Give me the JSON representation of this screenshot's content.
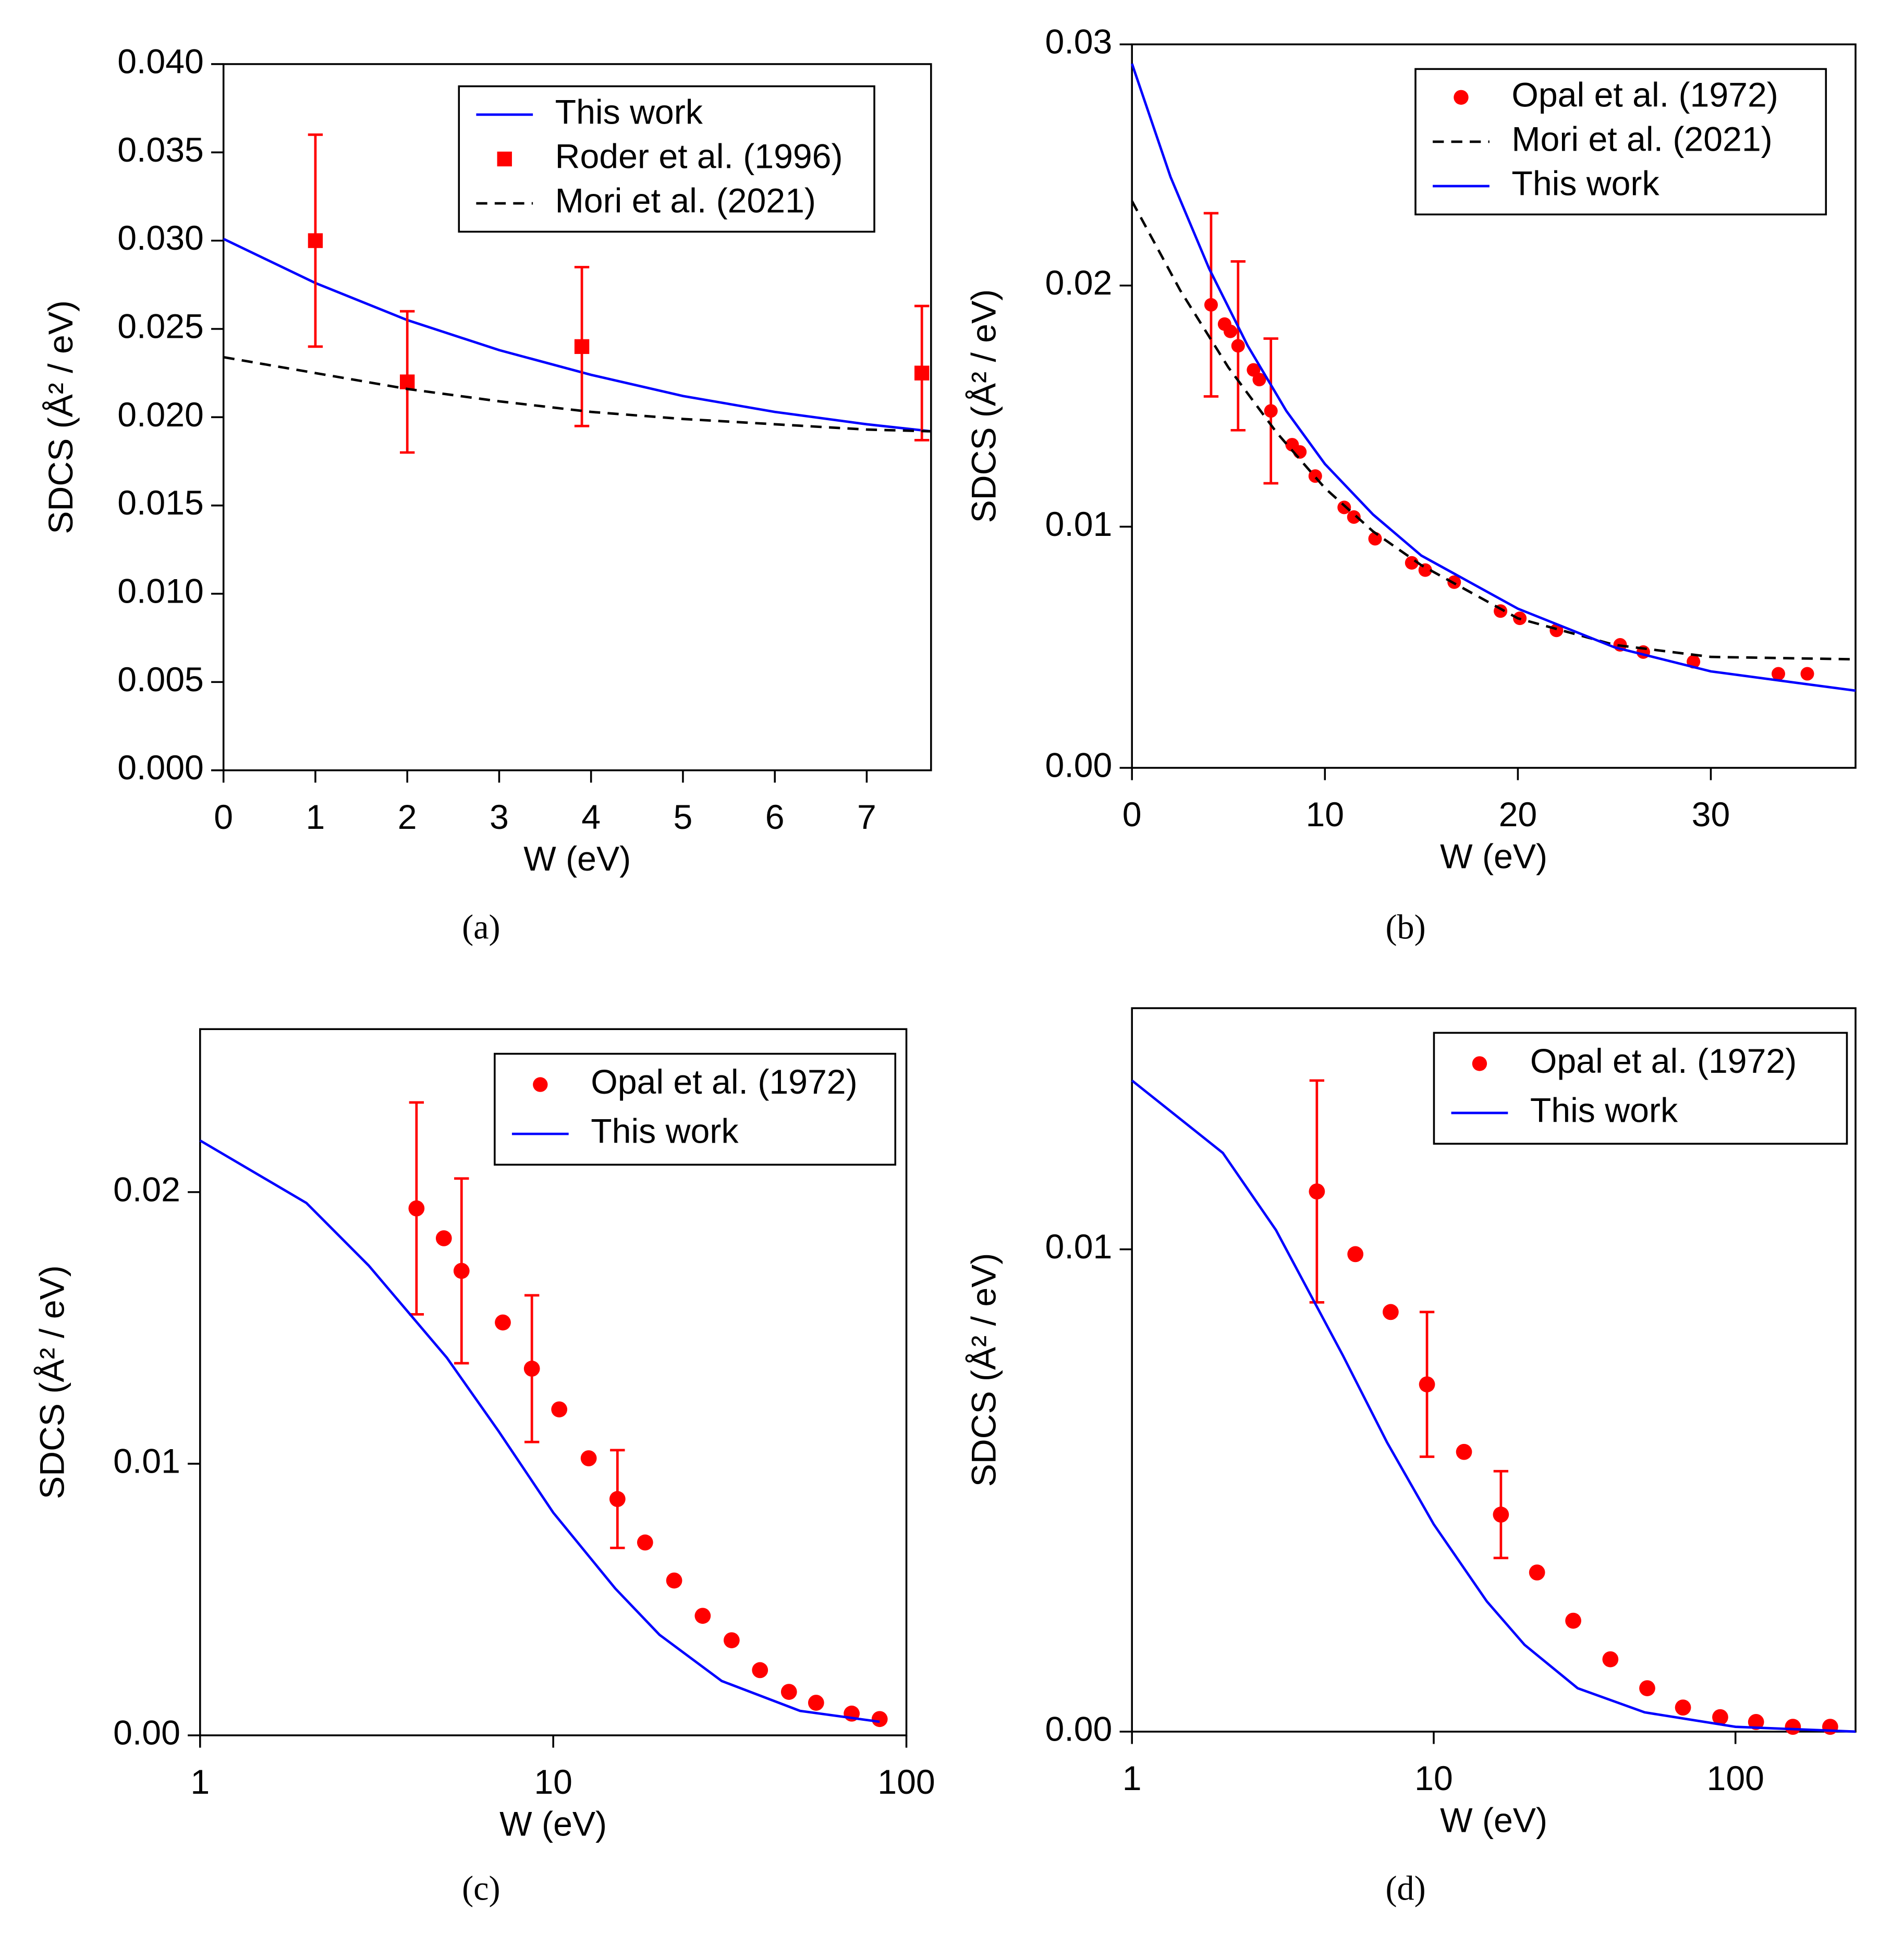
{
  "chart_data": [
    {
      "type": "line",
      "caption": "(a)",
      "xlabel": "W (eV)",
      "ylabel": "SDCS (Å² / eV)",
      "xscale": "linear",
      "legend": "upper right",
      "xlim": [
        0,
        7.7
      ],
      "xticks": [
        0,
        1,
        2,
        3,
        4,
        5,
        6,
        7
      ],
      "ylim": [
        0,
        0.04
      ],
      "yticks": [
        {
          "value": 0,
          "label": "0.000"
        },
        {
          "value": 0.005,
          "label": "0.005"
        },
        {
          "value": 0.01,
          "label": "0.010"
        },
        {
          "value": 0.015,
          "label": "0.015"
        },
        {
          "value": 0.02,
          "label": "0.020"
        },
        {
          "value": 0.025,
          "label": "0.025"
        },
        {
          "value": 0.03,
          "label": "0.030"
        },
        {
          "value": 0.035,
          "label": "0.035"
        },
        {
          "value": 0.04,
          "label": "0.040"
        }
      ],
      "series": [
        {
          "name": "This work",
          "color": "#0000ff",
          "line": "solid",
          "x": [
            0,
            1,
            2,
            3,
            4,
            5,
            6,
            7,
            7.7
          ],
          "values": [
            0.0301,
            0.0276,
            0.0255,
            0.0238,
            0.0224,
            0.0212,
            0.0203,
            0.0196,
            0.0192
          ]
        },
        {
          "name": "Roder et al. (1996)",
          "color": "#ff0000",
          "marker": "square",
          "x": [
            1,
            2,
            3.9,
            7.6
          ],
          "values": [
            0.03,
            0.022,
            0.024,
            0.0225
          ],
          "errors": [
            0.006,
            0.004,
            0.0045,
            0.0038
          ]
        },
        {
          "name": "Mori et al. (2021)",
          "color": "#000000",
          "line": "dashed",
          "x": [
            0,
            1,
            2,
            3,
            4,
            5,
            6,
            7,
            7.7
          ],
          "values": [
            0.0234,
            0.0225,
            0.0216,
            0.0209,
            0.0203,
            0.0199,
            0.0196,
            0.0193,
            0.0192
          ]
        }
      ]
    },
    {
      "type": "line",
      "caption": "(b)",
      "xlabel": "W (eV)",
      "ylabel": "SDCS (Å² / eV)",
      "xscale": "linear",
      "legend": "upper right",
      "xlim": [
        0,
        37.5
      ],
      "xticks": [
        0,
        10,
        20,
        30
      ],
      "ylim": [
        0,
        0.03
      ],
      "yticks": [
        {
          "value": 0,
          "label": "0.00"
        },
        {
          "value": 0.01,
          "label": "0.01"
        },
        {
          "value": 0.02,
          "label": "0.02"
        },
        {
          "value": 0.03,
          "label": "0.03"
        }
      ],
      "series": [
        {
          "name": "Opal et al. (1972)",
          "color": "#ff0000",
          "marker": "circle",
          "x": [
            4.1,
            4.8,
            5.1,
            5.5,
            6.3,
            6.6,
            7.2,
            8.3,
            8.7,
            9.5,
            11.0,
            11.5,
            12.6,
            14.5,
            15.2,
            16.7,
            19.1,
            20.1,
            22.0,
            25.3,
            26.5,
            29.1,
            33.5,
            35.0
          ],
          "values": [
            0.0192,
            0.0184,
            0.0181,
            0.0175,
            0.0165,
            0.0161,
            0.0148,
            0.0134,
            0.0131,
            0.0121,
            0.0108,
            0.0104,
            0.0095,
            0.0085,
            0.0082,
            0.0077,
            0.0065,
            0.0062,
            0.0057,
            0.0051,
            0.0048,
            0.0044,
            0.0039,
            0.0039
          ],
          "errors": [
            0.0038,
            null,
            null,
            0.0035,
            null,
            null,
            0.003,
            null,
            null,
            null,
            null,
            null,
            null,
            null,
            null,
            null,
            null,
            null,
            null,
            null,
            null,
            null,
            null,
            null
          ]
        },
        {
          "name": "Mori et al. (2021)",
          "color": "#000000",
          "line": "dashed",
          "x": [
            0,
            2.5,
            5,
            7.5,
            10,
            12.5,
            15,
            20,
            25,
            30,
            37.5
          ],
          "values": [
            0.0235,
            0.0198,
            0.0166,
            0.0139,
            0.0116,
            0.0098,
            0.0084,
            0.0062,
            0.0051,
            0.0046,
            0.0045
          ]
        },
        {
          "name": "This work",
          "color": "#0000ff",
          "line": "solid",
          "x": [
            0,
            2,
            4,
            6,
            8,
            10,
            12.5,
            15,
            20,
            25,
            30,
            37.5
          ],
          "values": [
            0.0292,
            0.0245,
            0.0207,
            0.0175,
            0.0148,
            0.0126,
            0.0105,
            0.0088,
            0.0066,
            0.005,
            0.004,
            0.0032
          ]
        }
      ]
    },
    {
      "type": "line",
      "caption": "(c)",
      "xlabel": "W (eV)",
      "ylabel": "SDCS (Å² / eV)",
      "xscale": "log",
      "legend": "upper right",
      "xlim": [
        1,
        100
      ],
      "xticks": [
        1,
        10,
        100
      ],
      "ylim": [
        0,
        0.026
      ],
      "yticks": [
        {
          "value": 0,
          "label": "0.00"
        },
        {
          "value": 0.01,
          "label": "0.01"
        },
        {
          "value": 0.02,
          "label": "0.02"
        }
      ],
      "series": [
        {
          "name": "Opal et al. (1972)",
          "color": "#ff0000",
          "marker": "circle",
          "x": [
            4.1,
            4.9,
            5.5,
            7.2,
            8.7,
            10.4,
            12.6,
            15.2,
            18.2,
            22,
            26.5,
            32,
            38.5,
            46.5,
            55.5,
            70,
            84
          ],
          "values": [
            0.0194,
            0.0183,
            0.0171,
            0.0152,
            0.0135,
            0.012,
            0.0102,
            0.0087,
            0.0071,
            0.0057,
            0.0044,
            0.0035,
            0.0024,
            0.0016,
            0.0012,
            0.0008,
            0.0006
          ],
          "errors": [
            0.0039,
            null,
            0.0034,
            null,
            0.0027,
            null,
            null,
            0.0018,
            null,
            null,
            null,
            null,
            null,
            null,
            null,
            null,
            null
          ]
        },
        {
          "name": "This work",
          "color": "#0000ff",
          "line": "solid",
          "x": [
            1,
            2,
            3,
            5,
            7,
            10,
            15,
            20,
            30,
            50,
            84
          ],
          "values": [
            0.0219,
            0.0196,
            0.0173,
            0.0139,
            0.0112,
            0.0082,
            0.0054,
            0.0037,
            0.002,
            0.0009,
            0.0005
          ]
        }
      ]
    },
    {
      "type": "line",
      "caption": "(d)",
      "xlabel": "W (eV)",
      "ylabel": "SDCS (Å² / eV)",
      "xscale": "log",
      "legend": "upper right",
      "xlim": [
        1,
        250
      ],
      "xticks": [
        1,
        10,
        100
      ],
      "ylim": [
        0,
        0.015
      ],
      "yticks": [
        {
          "value": 0,
          "label": "0.00"
        },
        {
          "value": 0.01,
          "label": "0.01"
        }
      ],
      "series": [
        {
          "name": "Opal et al. (1972)",
          "color": "#ff0000",
          "marker": "circle",
          "x": [
            4.1,
            5.5,
            7.2,
            9.5,
            12.6,
            16.7,
            22,
            29,
            38.5,
            51,
            67,
            89,
            117,
            155,
            206
          ],
          "values": [
            0.0112,
            0.0099,
            0.0087,
            0.0072,
            0.0058,
            0.0045,
            0.0033,
            0.0023,
            0.0015,
            0.0009,
            0.0005,
            0.0003,
            0.0002,
            0.0001,
            0.0001
          ],
          "errors": [
            0.0023,
            null,
            null,
            0.0015,
            null,
            0.0009,
            null,
            null,
            null,
            null,
            null,
            null,
            null,
            null,
            null
          ]
        },
        {
          "name": "This work",
          "color": "#0000ff",
          "line": "solid",
          "x": [
            1,
            2,
            3,
            5,
            7,
            10,
            15,
            20,
            30,
            50,
            100,
            250
          ],
          "values": [
            0.0135,
            0.012,
            0.0104,
            0.0078,
            0.006,
            0.0043,
            0.0027,
            0.0018,
            0.0009,
            0.0004,
            0.0001,
            0
          ]
        }
      ]
    }
  ]
}
